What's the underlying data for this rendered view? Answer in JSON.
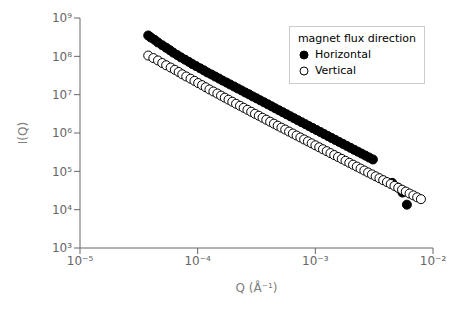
{
  "chart_data": {
    "type": "scatter",
    "xlabel": "Q (Å⁻¹)",
    "ylabel": "I(Q)",
    "legend_title": "magnet flux direction",
    "legend": "upper right",
    "log": true,
    "grid": false,
    "xlim": [
      1e-05,
      0.01
    ],
    "ylim": [
      1000.0,
      1000000000.0
    ],
    "xticks": [
      {
        "value": 1e-05,
        "label": "10⁻⁵"
      },
      {
        "value": 0.0001,
        "label": "10⁻⁴"
      },
      {
        "value": 0.001,
        "label": "10⁻³"
      },
      {
        "value": 0.01,
        "label": "10⁻²"
      }
    ],
    "yticks": [
      {
        "value": 1000.0,
        "label": "10³"
      },
      {
        "value": 10000.0,
        "label": "10⁴"
      },
      {
        "value": 100000.0,
        "label": "10⁵"
      },
      {
        "value": 1000000.0,
        "label": "10⁶"
      },
      {
        "value": 10000000.0,
        "label": "10⁷"
      },
      {
        "value": 100000000.0,
        "label": "10⁸"
      },
      {
        "value": 1000000000.0,
        "label": "10⁹"
      }
    ],
    "series": [
      {
        "name": "Horizontal",
        "color": "#000000",
        "marker": "circle",
        "x": [
          3.8e-05,
          4e-05,
          4.3e-05,
          4.6e-05,
          5e-05,
          5.4e-05,
          5.8e-05,
          6.2e-05,
          6.7e-05,
          7.2e-05,
          7.8e-05,
          8.4e-05,
          9e-05,
          9.7e-05,
          0.000105,
          0.000113,
          0.000121,
          0.000131,
          0.000141,
          0.000152,
          0.000163,
          0.000176,
          0.000189,
          0.000204,
          0.000219,
          0.000236,
          0.000254,
          0.000273,
          0.000294,
          0.000317,
          0.000341,
          0.000367,
          0.000395,
          0.000425,
          0.000457,
          0.000492,
          0.00053,
          0.00057,
          0.000614,
          0.00066,
          0.00071,
          0.000765,
          0.000823,
          0.000885,
          0.000952,
          0.001025,
          0.001103,
          0.001187,
          0.001278,
          0.001375,
          0.00148,
          0.001592,
          0.001714,
          0.001844,
          0.001985,
          0.002136,
          0.002299,
          0.002474,
          0.002663,
          0.002866,
          0.003085,
          0.0045,
          0.005,
          0.0055,
          0.006
        ],
        "values": [
          350000000.0,
          310000000.0,
          270000000.0,
          230000000.0,
          195000000.0,
          168000000.0,
          145000000.0,
          125000000.0,
          108000000.0,
          94000000.0,
          82000000.0,
          72000000.0,
          63000000.0,
          55500000.0,
          48700000.0,
          43000000.0,
          38000000.0,
          33600000.0,
          29700000.0,
          26300000.0,
          23300000.0,
          20700000.0,
          18400000.0,
          16300000.0,
          14500000.0,
          12900000.0,
          11400000.0,
          10200000.0,
          9000000.0,
          8000000.0,
          7100000.0,
          6300000.0,
          5600000.0,
          4970000.0,
          4400000.0,
          3910000.0,
          3470000.0,
          3080000.0,
          2730000.0,
          2430000.0,
          2150000.0,
          1910000.0,
          1700000.0,
          1510000.0,
          1340000.0,
          1190000.0,
          1060000.0,
          940000.0,
          835000.0,
          742000.0,
          659000.0,
          586000.0,
          521000.0,
          463000.0,
          412000.0,
          366000.0,
          326000.0,
          290000.0,
          258000.0,
          229000.0,
          204000.0,
          50000.0,
          38000.0,
          28000.0,
          13500.0
        ]
      },
      {
        "name": "Vertical",
        "color": "#000000",
        "marker": "circle_open",
        "x": [
          3.8e-05,
          4.2e-05,
          4.6e-05,
          5e-05,
          5.4e-05,
          5.9e-05,
          6.4e-05,
          6.9e-05,
          7.4e-05,
          8e-05,
          8.7e-05,
          9.4e-05,
          0.000101,
          0.000109,
          0.000117,
          0.000126,
          0.000136,
          0.000147,
          0.000158,
          0.00017,
          0.000183,
          0.000197,
          0.000212,
          0.000229,
          0.000246,
          0.000265,
          0.000285,
          0.000307,
          0.000331,
          0.000356,
          0.000383,
          0.000413,
          0.000445,
          0.000479,
          0.000515,
          0.000555,
          0.000598,
          0.000644,
          0.000693,
          0.000746,
          0.000803,
          0.000865,
          0.000931,
          0.001002,
          0.001079,
          0.001161,
          0.00125,
          0.001345,
          0.001448,
          0.001559,
          0.001678,
          0.001806,
          0.001944,
          0.002092,
          0.002252,
          0.002424,
          0.00261,
          0.00281,
          0.003025,
          0.003257,
          0.003506,
          0.003774,
          0.004063,
          0.004373,
          0.004708,
          0.005068,
          0.005457,
          0.005874,
          0.006324,
          0.00681,
          0.007334,
          0.0079
        ],
        "values": [
          105000000.0,
          90000000.0,
          78000000.0,
          67000000.0,
          58500000.0,
          51000000.0,
          44500000.0,
          39000000.0,
          34000000.0,
          29800000.0,
          26100000.0,
          22900000.0,
          20100000.0,
          17700000.0,
          15600000.0,
          13700000.0,
          12100000.0,
          10700000.0,
          9440000.0,
          8350000.0,
          7390000.0,
          6540000.0,
          5790000.0,
          5130000.0,
          4550000.0,
          4030000.0,
          3580000.0,
          3170000.0,
          2820000.0,
          2500000.0,
          2220000.0,
          1970000.0,
          1750000.0,
          1550000.0,
          1380000.0,
          1230000.0,
          1090000.0,
          968000.0,
          860000.0,
          764000.0,
          679000.0,
          604000.0,
          537000.0,
          477000.0,
          424000.0,
          377000.0,
          336000.0,
          299000.0,
          266000.0,
          237000.0,
          211000.0,
          188000.0,
          167000.0,
          149000.0,
          133000.0,
          118000.0,
          105000.0,
          93500.0,
          83300.0,
          74200.0,
          66100.0,
          58900.0,
          52500.0,
          46800.0,
          41700.0,
          37200.0,
          33200.0,
          29600.0,
          26400.0,
          23600.0,
          21000.0,
          18800.0
        ]
      }
    ]
  }
}
